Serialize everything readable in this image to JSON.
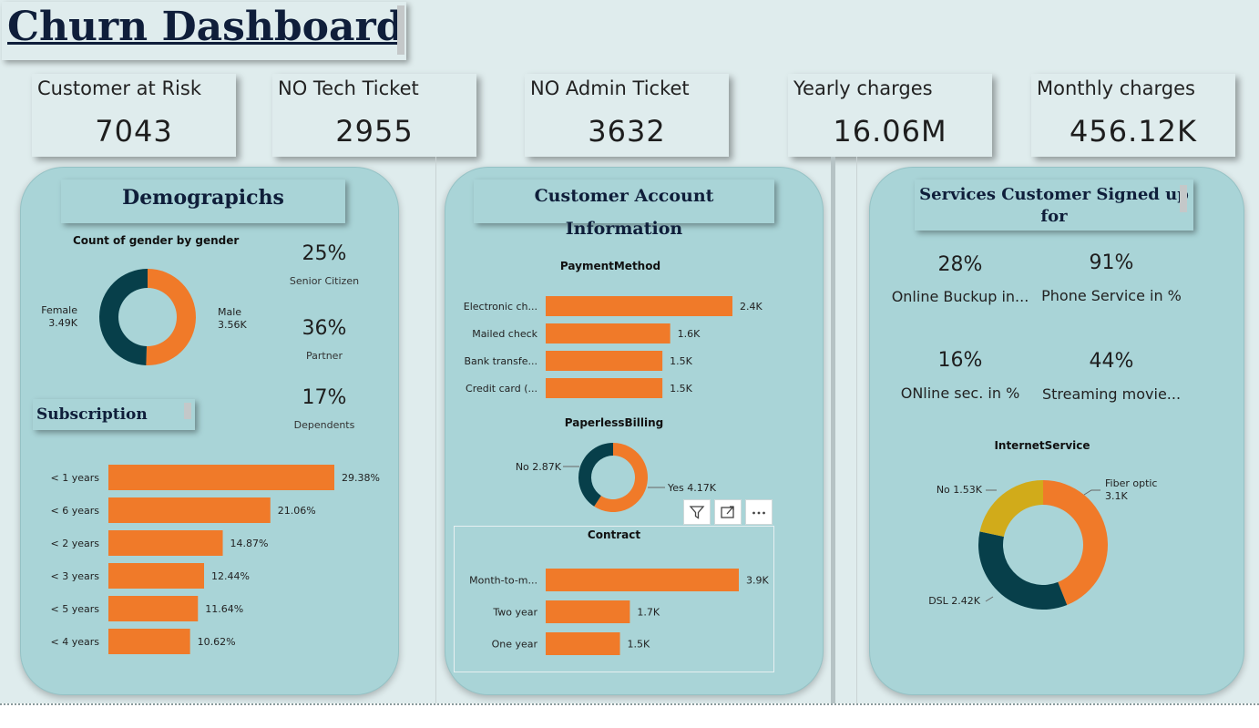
{
  "title": "Churn Dashboard",
  "kpis": [
    {
      "label": "Customer at Risk",
      "value": "7043"
    },
    {
      "label": "NO Tech Ticket",
      "value": "2955"
    },
    {
      "label": "NO Admin Ticket",
      "value": "3632"
    },
    {
      "label": "Yearly charges",
      "value": "16.06M"
    },
    {
      "label": "Monthly charges",
      "value": "456.12K"
    }
  ],
  "colors": {
    "orange": "#f07a29",
    "dark_teal": "#073f4a",
    "gold": "#d1ab1a",
    "panel": "#a9d4d7",
    "background": "#dfeced"
  },
  "demographics": {
    "header": "Demograpichs",
    "stats": [
      {
        "value": "25%",
        "label": "Senior Citizen"
      },
      {
        "value": "36%",
        "label": "Partner"
      },
      {
        "value": "17%",
        "label": "Dependents"
      }
    ],
    "subscription_header": "Subscription"
  },
  "account": {
    "header": "Customer Account Information"
  },
  "services": {
    "header_line1": "Services Customer Signed up",
    "header_line2": "for",
    "stats": [
      {
        "value": "28%",
        "label": "Online Buckup in..."
      },
      {
        "value": "91%",
        "label": "Phone Service in %"
      },
      {
        "value": "16%",
        "label": "ONline sec. in %"
      },
      {
        "value": "44%",
        "label": "Streaming movie..."
      }
    ]
  },
  "visual_toolbar": {
    "icons": [
      "filter-icon",
      "focus-mode-icon",
      "more-options-icon"
    ]
  },
  "chart_data": [
    {
      "type": "pie",
      "title": "Count of gender by gender",
      "categories": [
        "Male",
        "Female"
      ],
      "values": [
        3.56,
        3.49
      ],
      "value_labels": [
        "3.56K",
        "3.49K"
      ],
      "colors": [
        "#f07a29",
        "#073f4a"
      ]
    },
    {
      "type": "bar",
      "title": "",
      "orientation": "horizontal",
      "categories": [
        "< 1 years",
        "< 6 years",
        "< 2 years",
        "< 3 years",
        "< 5 years",
        "< 4 years"
      ],
      "values": [
        29.38,
        21.06,
        14.87,
        12.44,
        11.64,
        10.62
      ],
      "value_labels": [
        "29.38%",
        "21.06%",
        "14.87%",
        "12.44%",
        "11.64%",
        "10.62%"
      ]
    },
    {
      "type": "bar",
      "title": "PaymentMethod",
      "orientation": "horizontal",
      "categories": [
        "Electronic ch...",
        "Mailed check",
        "Bank transfe...",
        "Credit card (..."
      ],
      "values": [
        2.4,
        1.6,
        1.5,
        1.5
      ],
      "value_labels": [
        "2.4K",
        "1.6K",
        "1.5K",
        "1.5K"
      ]
    },
    {
      "type": "pie",
      "title": "PaperlessBilling",
      "categories": [
        "Yes",
        "No"
      ],
      "values": [
        4.17,
        2.87
      ],
      "value_labels": [
        "Yes 4.17K",
        "No 2.87K"
      ],
      "colors": [
        "#f07a29",
        "#073f4a"
      ]
    },
    {
      "type": "bar",
      "title": "Contract",
      "orientation": "horizontal",
      "categories": [
        "Month-to-m...",
        "Two year",
        "One year"
      ],
      "values": [
        3.9,
        1.7,
        1.5
      ],
      "value_labels": [
        "3.9K",
        "1.7K",
        "1.5K"
      ]
    },
    {
      "type": "pie",
      "title": "InternetService",
      "categories": [
        "Fiber optic",
        "DSL",
        "No"
      ],
      "values": [
        3.1,
        2.42,
        1.53
      ],
      "value_labels": [
        "3.1K",
        "DSL 2.42K",
        "No 1.53K"
      ],
      "colors": [
        "#f07a29",
        "#073f4a",
        "#d1ab1a"
      ]
    }
  ]
}
